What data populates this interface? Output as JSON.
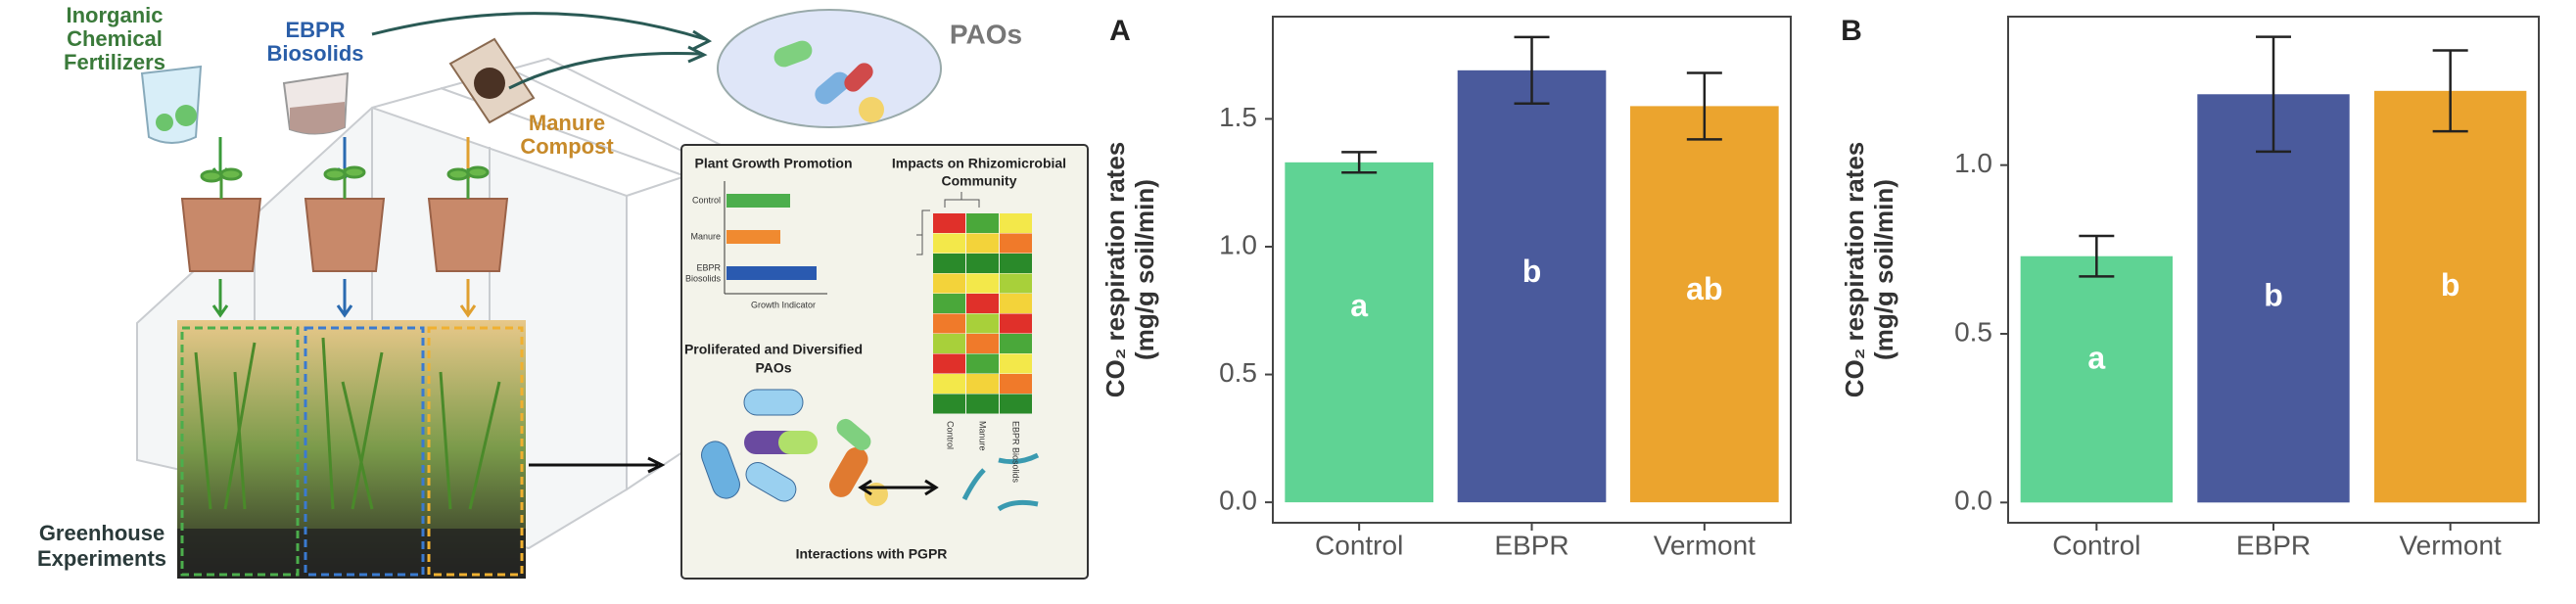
{
  "graphical_abstract": {
    "inputs": [
      [
        "Inorganic",
        "Chemical",
        "Fertilizers"
      ],
      [
        "EBPR",
        "Biosolids"
      ],
      [
        "Manure",
        "Compost"
      ]
    ],
    "paos": "PAOs",
    "greenhouse": [
      "Greenhouse",
      "Experiments"
    ],
    "panel": {
      "growth_title": "Plant Growth Promotion",
      "growth_labels": [
        "Control",
        "Manure",
        [
          "EBPR",
          "Biosolids"
        ]
      ],
      "growth_axis": "Growth Indicator",
      "community_title": [
        "Impacts on Rhizomicrobial",
        "Community"
      ],
      "heatmap_labels": [
        "Control",
        "Manure",
        "EBPR Biosolids"
      ],
      "paos_title": [
        "Proliferated and Diversified",
        "PAOs"
      ],
      "pgpr": "Interactions with PGPR"
    }
  },
  "chart_data": [
    {
      "type": "bar",
      "panel": "A",
      "y_label": [
        "CO₂ respiration rates",
        "(mg/g soil/min)"
      ],
      "categories": [
        "Control",
        "EBPR",
        "Vermont"
      ],
      "values": [
        1.33,
        1.69,
        1.55
      ],
      "errors": [
        0.04,
        0.13,
        0.13
      ],
      "annotations": [
        "a",
        "b",
        "ab"
      ],
      "colors": [
        "#5fd394",
        "#4a5a9c",
        "#eba42e"
      ],
      "ylim": [
        -0.08,
        1.9
      ],
      "yticks": [
        {
          "value": 0,
          "label": "0.0"
        },
        0.5,
        {
          "value": 1,
          "label": "1.0"
        },
        1.5
      ]
    },
    {
      "type": "bar",
      "panel": "B",
      "y_label": [
        "CO₂ respiration rates",
        "(mg/g soil/min)"
      ],
      "categories": [
        "Control",
        "EBPR",
        "Vermont"
      ],
      "values": [
        0.73,
        1.21,
        1.22
      ],
      "errors": [
        0.06,
        0.17,
        0.12
      ],
      "annotations": [
        "a",
        "b",
        "b"
      ],
      "colors": [
        "#5fd394",
        "#4a5a9c",
        "#eba42e"
      ],
      "ylim": [
        -0.06,
        1.44
      ],
      "yticks": [
        {
          "value": 0,
          "label": "0.0"
        },
        0.5,
        {
          "value": 1,
          "label": "1.0"
        }
      ]
    }
  ]
}
